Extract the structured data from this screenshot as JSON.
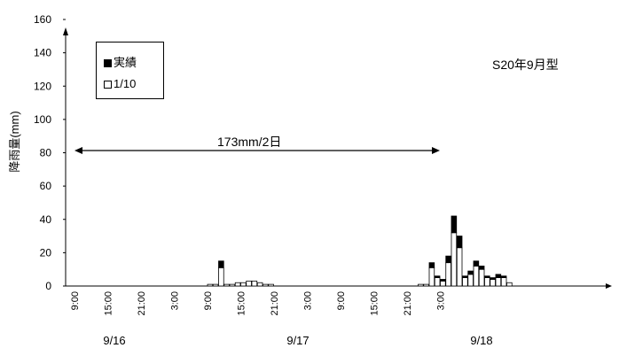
{
  "chart_data": {
    "type": "bar",
    "stacked": true,
    "ylabel": "降雨量(mm)",
    "ylim": [
      0,
      160
    ],
    "yticks": [
      0,
      20,
      40,
      60,
      80,
      100,
      120,
      140,
      160
    ],
    "x_tick_labels": [
      "9:00",
      "15:00",
      "21:00",
      "3:00",
      "9:00",
      "15:00",
      "21:00",
      "3:00",
      "9:00",
      "15:00",
      "21:00",
      "3:00"
    ],
    "date_labels": [
      "9/16",
      "9/17",
      "9/18"
    ],
    "legend_position": "top-left",
    "grid": false,
    "series": [
      {
        "name": "1/10",
        "values": [
          0,
          0,
          0,
          0,
          0,
          0,
          0,
          0,
          0,
          0,
          0,
          0,
          0,
          0,
          0,
          0,
          0,
          0,
          0,
          0,
          0,
          0,
          0,
          0,
          1,
          1,
          11,
          1,
          1,
          2,
          2,
          3,
          3,
          2,
          1,
          1,
          0,
          0,
          0,
          0,
          0,
          0,
          0,
          0,
          0,
          0,
          0,
          0,
          0,
          0,
          0,
          0,
          0,
          0,
          0,
          0,
          0,
          0,
          0,
          0,
          0,
          0,
          1,
          1,
          11,
          5,
          3,
          14,
          32,
          23,
          5,
          7,
          12,
          10,
          5,
          4,
          5,
          5,
          2
        ]
      },
      {
        "name": "実績",
        "values": [
          0,
          0,
          0,
          0,
          0,
          0,
          0,
          0,
          0,
          0,
          0,
          0,
          0,
          0,
          0,
          0,
          0,
          0,
          0,
          0,
          0,
          0,
          0,
          0,
          0,
          0,
          4,
          0,
          0,
          0,
          0,
          0,
          0,
          0,
          0,
          0,
          0,
          0,
          0,
          0,
          0,
          0,
          0,
          0,
          0,
          0,
          0,
          0,
          0,
          0,
          0,
          0,
          0,
          0,
          0,
          0,
          0,
          0,
          0,
          0,
          0,
          0,
          0,
          0,
          3,
          1,
          1,
          4,
          10,
          7,
          1,
          2,
          3,
          2,
          1,
          1,
          2,
          1,
          0
        ]
      }
    ],
    "series_colors": {
      "1/10": "#ffffff",
      "実績": "#000000"
    },
    "annotations": {
      "duration_label": "173mm/2日",
      "pattern_label": "S20年9月型"
    }
  },
  "legend": {
    "item1": "実績",
    "item2": "1/10"
  }
}
